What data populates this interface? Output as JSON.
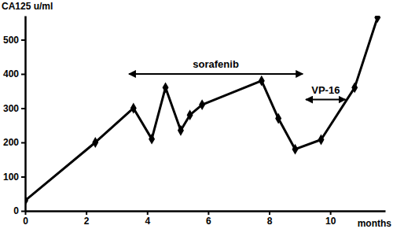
{
  "chart_data": {
    "type": "line",
    "x_label": "months",
    "y_label": "CA125 u/ml",
    "x": [
      0,
      2.3,
      3.55,
      4.15,
      4.6,
      5.1,
      5.4,
      5.8,
      7.75,
      8.3,
      8.85,
      9.7,
      10.8,
      11.55
    ],
    "values": [
      30,
      200,
      300,
      210,
      360,
      235,
      280,
      310,
      380,
      270,
      180,
      208,
      360,
      565
    ],
    "color": "#000000",
    "marker": "diamond",
    "xlim": [
      0,
      11.8
    ],
    "ylim": [
      0,
      570
    ],
    "xticks": [
      0,
      2,
      4,
      6,
      8,
      10
    ],
    "yticks": [
      0,
      100,
      200,
      300,
      400,
      500
    ],
    "annotations": [
      {
        "text": "sorafenib",
        "x0": 3.4,
        "x1": 9.1,
        "y": 400
      },
      {
        "text": "VP-16",
        "x0": 9.2,
        "x1": 10.5,
        "y": 325
      }
    ]
  }
}
